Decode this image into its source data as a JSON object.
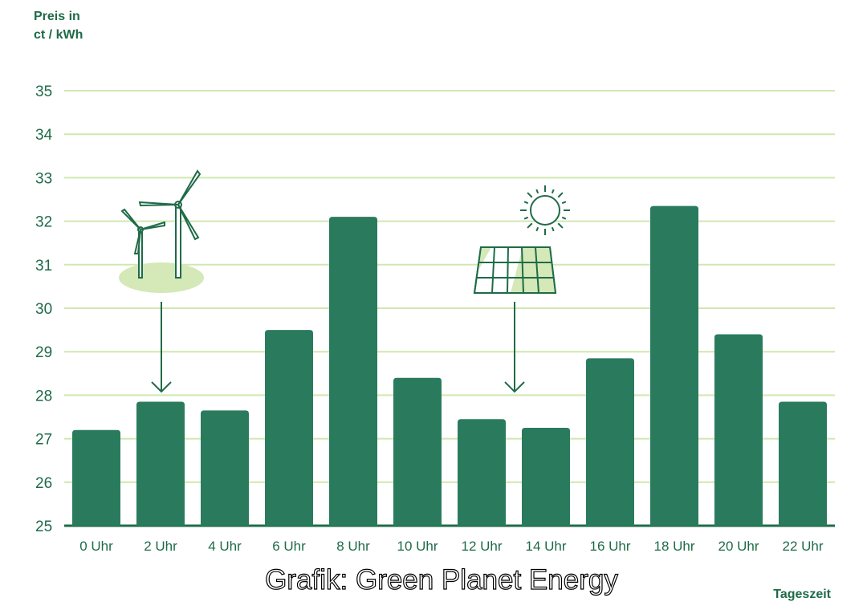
{
  "chart_data": {
    "type": "bar",
    "ylabel_line1": "Preis in",
    "ylabel_line2": "ct / kWh",
    "xlabel": "Tageszeit",
    "categories": [
      "0 Uhr",
      "2 Uhr",
      "4 Uhr",
      "6 Uhr",
      "8 Uhr",
      "10 Uhr",
      "12 Uhr",
      "14 Uhr",
      "16 Uhr",
      "18 Uhr",
      "20 Uhr",
      "22 Uhr"
    ],
    "values": [
      27.2,
      27.85,
      27.65,
      29.5,
      32.1,
      28.4,
      27.45,
      27.25,
      28.85,
      32.35,
      29.4,
      27.85
    ],
    "ylim": [
      25,
      35
    ],
    "yticks": [
      25,
      26,
      27,
      28,
      29,
      30,
      31,
      32,
      33,
      34,
      35
    ],
    "grid": true,
    "annotations": [
      "wind-turbines pointing to 2 Uhr",
      "solar-panel pointing to 14 Uhr"
    ],
    "colors": {
      "bar": "#2a7b5e",
      "grid": "#cfe8b0",
      "text": "#1f6b48",
      "accent_light": "#d4e8b8"
    }
  },
  "watermark": "Grafik: Green Planet Energy"
}
